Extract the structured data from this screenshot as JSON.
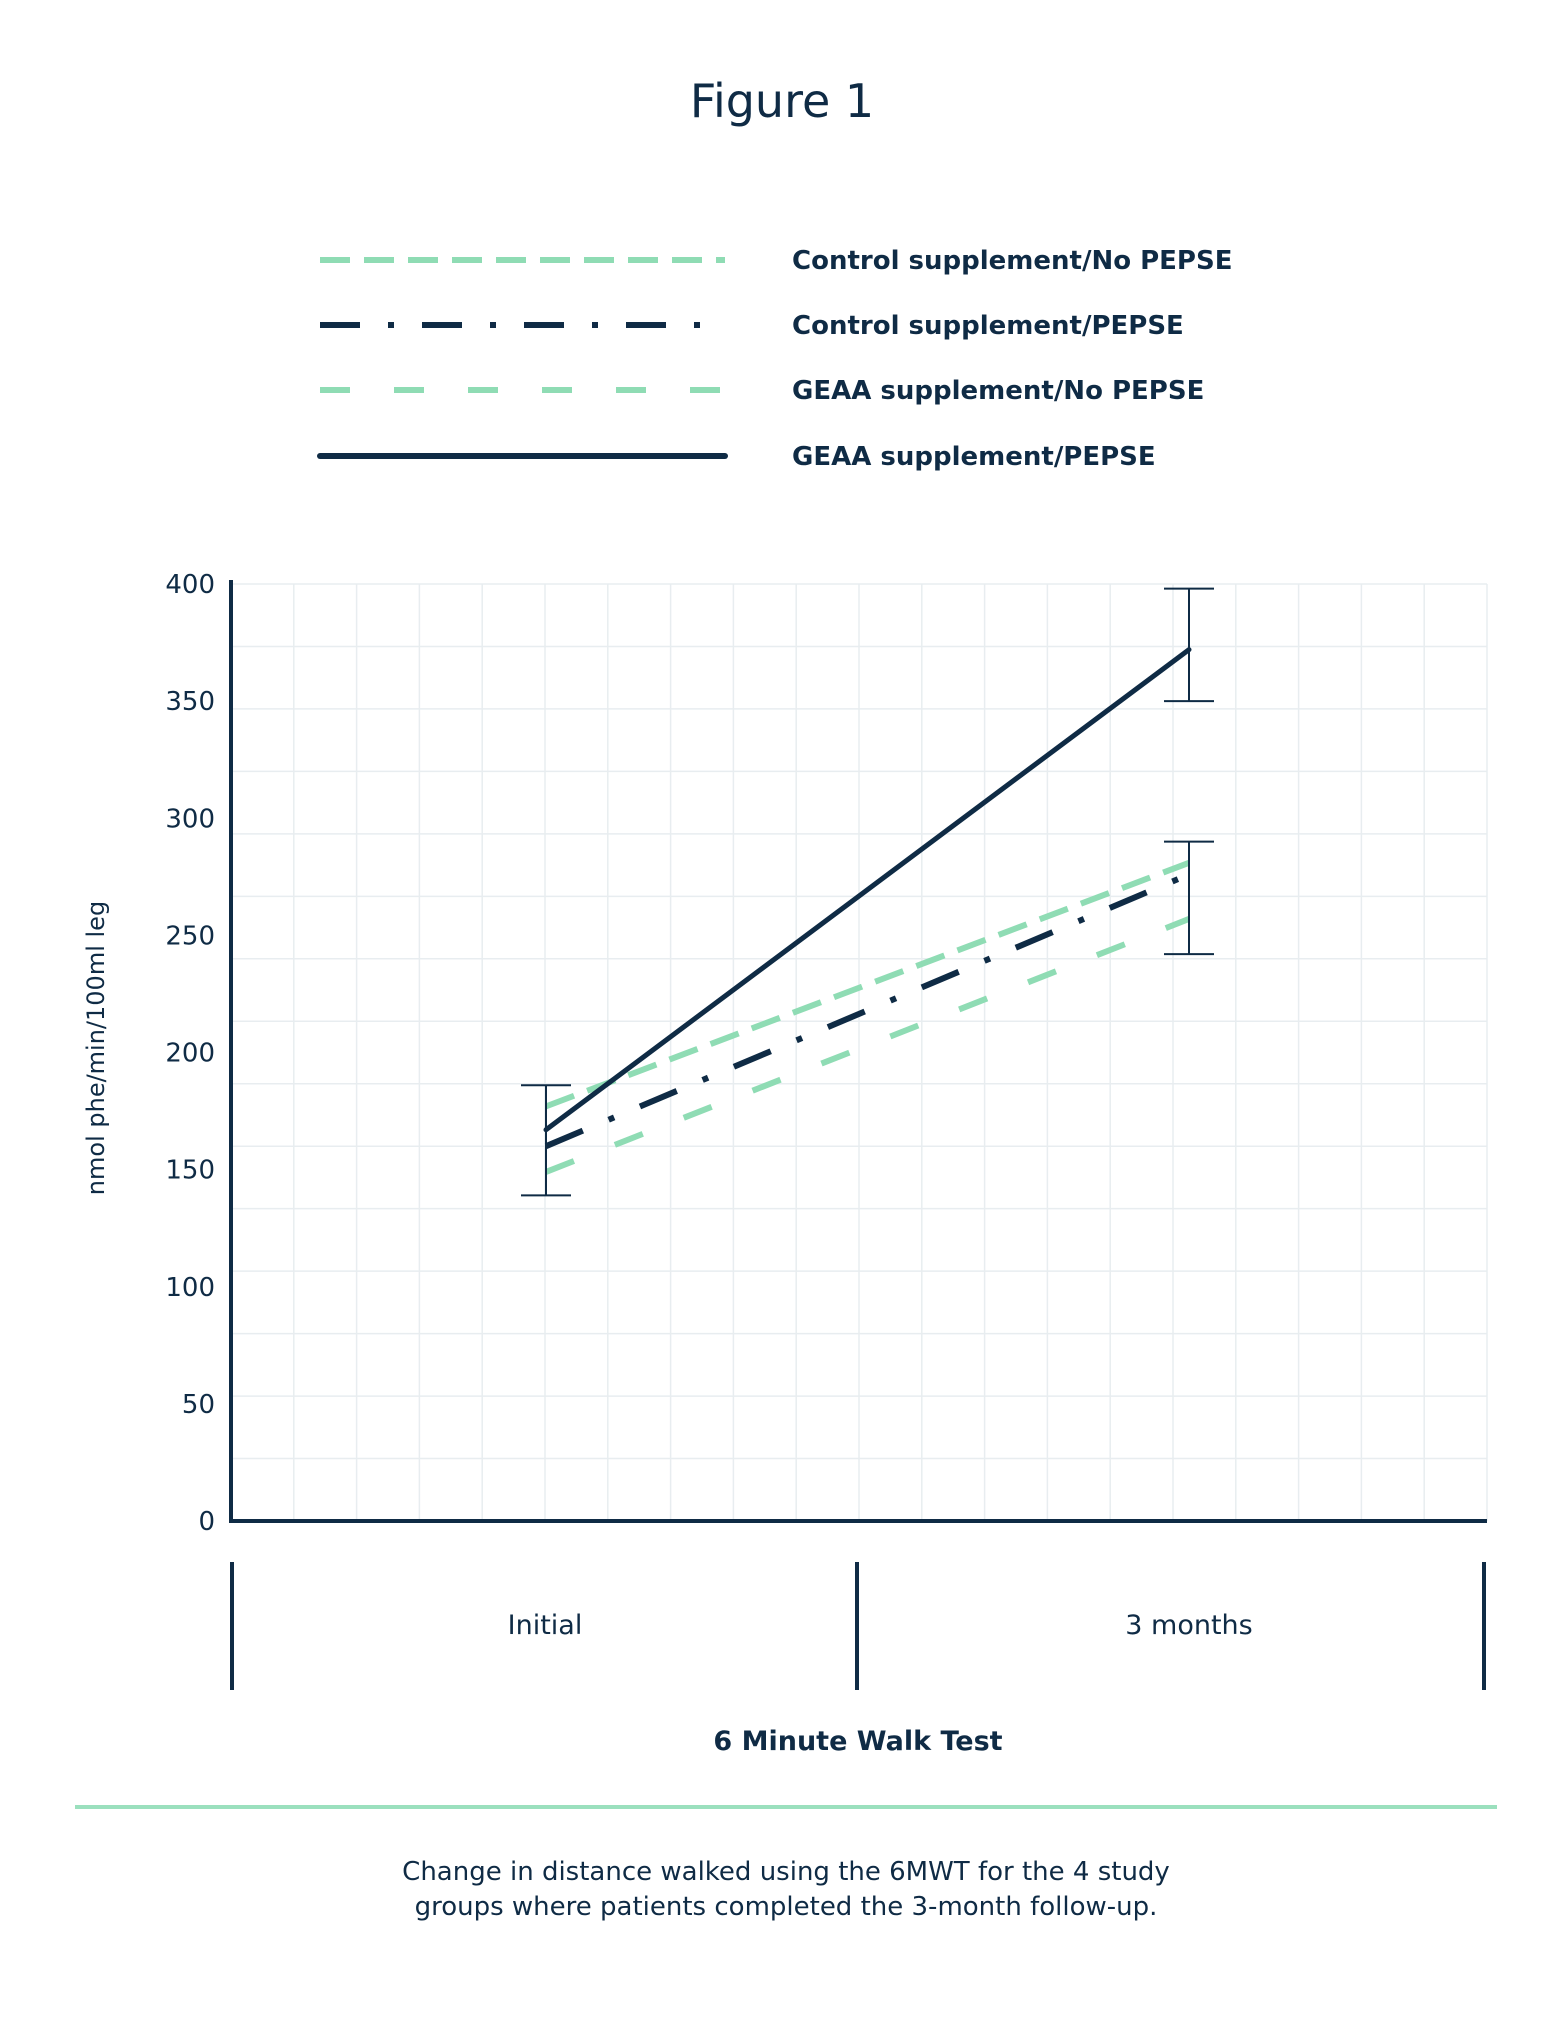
{
  "colors": {
    "navy": "#0f2b45",
    "green": "#8fdcb4",
    "grid": "#e8edf0",
    "divider": "#9be0be"
  },
  "chart_data": {
    "type": "line",
    "title": "Figure 1",
    "xlabel": "6 Minute Walk Test",
    "ylabel": "nmol phe/min/100ml leg",
    "categories": [
      "Initial",
      "3 months"
    ],
    "ylim": [
      0,
      400
    ],
    "yticks": [
      "0",
      "50",
      "100",
      "150",
      "200",
      "250",
      "300",
      "350",
      "400"
    ],
    "grid": true,
    "legend_position": "top",
    "series": [
      {
        "name": "Control supplement/No PEPSE",
        "values": [
          177,
          281
        ],
        "color": "#8fdcb4",
        "style": "long-dash"
      },
      {
        "name": "Control supplement/PEPSE",
        "values": [
          160,
          276
        ],
        "color": "#0f2b45",
        "style": "dash-dot"
      },
      {
        "name": "GEAA supplement/No PEPSE",
        "values": [
          149,
          257
        ],
        "color": "#8fdcb4",
        "style": "dash"
      },
      {
        "name": "GEAA supplement/PEPSE",
        "values": [
          167,
          372
        ],
        "color": "#0f2b45",
        "style": "solid"
      }
    ],
    "error_bars": [
      {
        "category": "Initial",
        "low": 139,
        "high": 186
      },
      {
        "category": "3 months",
        "low": 350,
        "high": 398
      },
      {
        "category": "3 months",
        "low": 242,
        "high": 290
      }
    ]
  },
  "caption": {
    "line1": "Change in distance walked using the 6MWT for the 4 study",
    "line2": "groups where patients completed the 3-month follow-up."
  }
}
